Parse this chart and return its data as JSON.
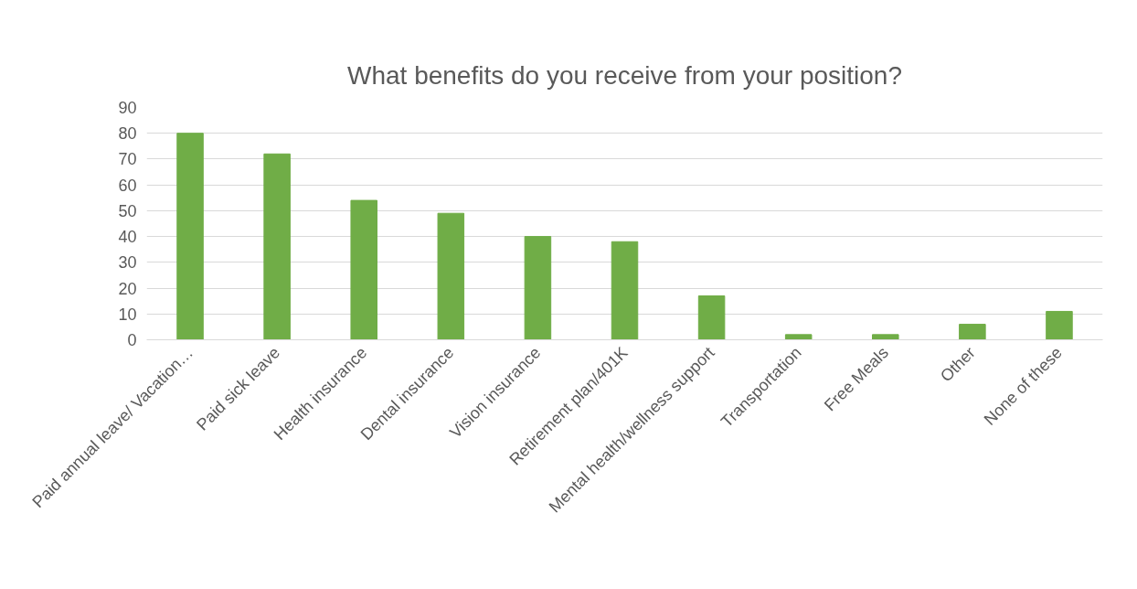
{
  "chart_data": {
    "type": "bar",
    "title": "What benefits do you receive from your position?",
    "categories": [
      "Paid annual leave/ Vacation…",
      "Paid sick leave",
      "Health insurance",
      "Dental insurance",
      "Vision insurance",
      "Retirement plan/401K",
      "Mental health/wellness support",
      "Transportation",
      "Free Meals",
      "Other",
      "None of these"
    ],
    "values": [
      80,
      72,
      54,
      49,
      40,
      38,
      17,
      2,
      2,
      6,
      11
    ],
    "color": "#70ad47",
    "ylim": [
      0,
      90
    ],
    "yticks": [
      0,
      10,
      20,
      30,
      40,
      50,
      60,
      70,
      80,
      90
    ],
    "grid": "y"
  }
}
